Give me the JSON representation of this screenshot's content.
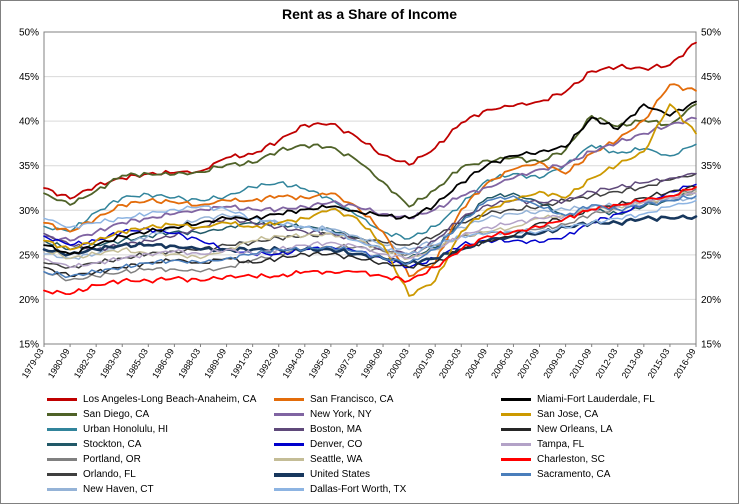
{
  "chart_data": {
    "type": "line",
    "title": "Rent as a Share of Income",
    "ylabel": "",
    "xlabel": "",
    "ylim": [
      15,
      50
    ],
    "y_ticks": [
      15,
      20,
      25,
      30,
      35,
      40,
      45,
      50
    ],
    "y_tick_suffix": "%",
    "grid": true,
    "legend_position": "bottom",
    "x_labels": [
      "1979-03",
      "1980-09",
      "1982-03",
      "1983-09",
      "1985-03",
      "1986-09",
      "1988-03",
      "1989-09",
      "1991-03",
      "1992-09",
      "1994-03",
      "1995-09",
      "1997-03",
      "1998-09",
      "2000-03",
      "2001-09",
      "2003-03",
      "2004-09",
      "2006-03",
      "2007-09",
      "2009-03",
      "2010-09",
      "2012-03",
      "2013-09",
      "2015-03",
      "2016-09"
    ],
    "series": [
      {
        "name": "Los Angeles-Long Beach-Anaheim, CA",
        "color": "#C00000",
        "width": 1.8,
        "values": [
          32.5,
          31.3,
          32.8,
          33.6,
          34.1,
          34.2,
          34.4,
          35.9,
          36.3,
          37.8,
          39.6,
          39.7,
          38.2,
          36.2,
          35.1,
          37.0,
          39.8,
          41.3,
          41.7,
          42.2,
          43.3,
          45.6,
          46.1,
          45.9,
          46.3,
          48.8
        ]
      },
      {
        "name": "San Diego, CA",
        "color": "#4F6228",
        "width": 1.8,
        "values": [
          31.9,
          30.6,
          32.2,
          33.9,
          34.1,
          34.0,
          34.3,
          35.1,
          35.3,
          36.7,
          37.3,
          37.1,
          35.6,
          33.2,
          30.4,
          32.3,
          34.8,
          35.6,
          35.9,
          35.4,
          36.8,
          40.6,
          39.4,
          40.1,
          39.6,
          41.9
        ]
      },
      {
        "name": "Urban Honolulu, HI",
        "color": "#31849B",
        "width": 1.5,
        "values": [
          28.2,
          27.6,
          29.8,
          31.4,
          31.8,
          31.4,
          31.1,
          31.6,
          32.6,
          33.1,
          32.4,
          31.3,
          29.4,
          27.6,
          26.8,
          28.2,
          30.6,
          33.4,
          34.1,
          33.6,
          35.1,
          37.3,
          36.4,
          36.9,
          36.1,
          37.4
        ]
      },
      {
        "name": "Stockton, CA",
        "color": "#215968",
        "width": 1.5,
        "values": [
          26.6,
          25.6,
          26.1,
          26.6,
          27.1,
          27.6,
          27.4,
          28.1,
          28.6,
          28.4,
          28.1,
          27.9,
          26.9,
          25.6,
          24.7,
          25.8,
          28.7,
          31.4,
          31.9,
          30.8,
          29.4,
          30.1,
          29.6,
          30.4,
          31.1,
          32.1
        ]
      },
      {
        "name": "Portland, OR",
        "color": "#808080",
        "width": 1.5,
        "values": [
          23.1,
          22.2,
          22.6,
          23.1,
          23.4,
          23.4,
          23.1,
          23.6,
          24.4,
          25.1,
          25.6,
          25.9,
          25.9,
          25.4,
          25.1,
          26.1,
          27.1,
          27.4,
          27.6,
          27.9,
          28.4,
          29.6,
          30.1,
          30.6,
          31.6,
          32.4
        ]
      },
      {
        "name": "Orlando, FL",
        "color": "#3F3F3F",
        "width": 1.5,
        "values": [
          24.1,
          23.6,
          24.1,
          24.6,
          25.1,
          25.4,
          25.6,
          26.1,
          26.4,
          26.9,
          27.1,
          27.4,
          26.9,
          26.4,
          26.1,
          27.1,
          28.6,
          29.6,
          30.1,
          30.4,
          31.1,
          31.6,
          32.1,
          32.6,
          33.4,
          34.1
        ]
      },
      {
        "name": "New Haven, CT",
        "color": "#95B3D7",
        "width": 1.5,
        "values": [
          25.1,
          24.6,
          25.1,
          26.1,
          27.1,
          28.1,
          29.1,
          29.4,
          29.1,
          28.6,
          28.1,
          27.9,
          27.1,
          26.1,
          25.6,
          26.6,
          28.1,
          29.1,
          29.6,
          29.9,
          30.1,
          30.4,
          30.6,
          30.9,
          31.1,
          31.4
        ]
      },
      {
        "name": "San Francisco, CA",
        "color": "#E36C0A",
        "width": 1.8,
        "values": [
          28.6,
          27.6,
          29.1,
          30.6,
          31.1,
          30.9,
          30.6,
          31.1,
          31.1,
          31.6,
          31.4,
          31.9,
          30.4,
          27.6,
          22.6,
          24.1,
          30.1,
          33.1,
          34.6,
          35.4,
          34.1,
          36.4,
          37.9,
          40.1,
          44.1,
          43.4
        ]
      },
      {
        "name": "New York, NY",
        "color": "#8064A2",
        "width": 1.8,
        "values": [
          27.1,
          26.6,
          27.6,
          28.6,
          29.1,
          29.6,
          30.1,
          30.4,
          30.1,
          30.1,
          30.4,
          30.9,
          30.4,
          29.6,
          29.1,
          30.1,
          31.6,
          32.6,
          33.6,
          34.6,
          35.1,
          36.6,
          37.6,
          38.6,
          39.6,
          40.3
        ]
      },
      {
        "name": "Boston, MA",
        "color": "#5F497A",
        "width": 1.5,
        "values": [
          27.4,
          26.1,
          25.6,
          26.1,
          26.6,
          27.1,
          28.1,
          29.1,
          28.6,
          28.1,
          27.6,
          27.4,
          26.6,
          25.6,
          25.1,
          26.6,
          29.1,
          30.6,
          31.1,
          30.9,
          31.1,
          32.1,
          32.6,
          33.1,
          33.6,
          34.1
        ]
      },
      {
        "name": "Denver, CO",
        "color": "#0000CC",
        "width": 1.5,
        "values": [
          27.1,
          26.1,
          26.6,
          27.6,
          27.9,
          27.4,
          26.6,
          25.6,
          25.1,
          25.1,
          25.6,
          25.9,
          25.4,
          24.6,
          23.6,
          24.6,
          26.1,
          26.6,
          26.6,
          26.4,
          27.1,
          28.6,
          29.6,
          30.6,
          32.1,
          32.9
        ]
      },
      {
        "name": "Seattle, WA",
        "color": "#C4BD97",
        "width": 1.5,
        "values": [
          25.6,
          24.6,
          25.1,
          25.6,
          25.1,
          25.1,
          24.6,
          25.6,
          26.6,
          27.1,
          27.1,
          27.4,
          26.6,
          25.6,
          24.6,
          25.6,
          27.1,
          27.6,
          28.1,
          29.1,
          29.4,
          30.1,
          30.4,
          30.9,
          31.4,
          32.1
        ]
      },
      {
        "name": "United States",
        "color": "#17375D",
        "width": 2.6,
        "values": [
          25.6,
          25.1,
          25.6,
          26.1,
          26.1,
          26.0,
          25.6,
          25.6,
          25.6,
          25.6,
          25.6,
          25.6,
          25.1,
          24.6,
          24.1,
          24.6,
          25.6,
          26.6,
          27.1,
          27.4,
          28.1,
          28.6,
          28.6,
          29.1,
          29.1,
          29.3
        ]
      },
      {
        "name": "Dallas-Fort Worth, TX",
        "color": "#8DB4E2",
        "width": 1.5,
        "values": [
          29.1,
          28.1,
          28.6,
          29.1,
          29.6,
          30.1,
          30.4,
          30.1,
          29.1,
          28.6,
          28.1,
          27.6,
          26.6,
          25.6,
          25.1,
          26.1,
          27.1,
          27.4,
          27.6,
          27.6,
          28.1,
          28.6,
          29.1,
          29.6,
          30.4,
          31.1
        ]
      },
      {
        "name": "Miami-Fort Lauderdale, FL",
        "color": "#000000",
        "width": 1.8,
        "values": [
          26.1,
          25.1,
          26.1,
          27.1,
          27.6,
          28.1,
          28.6,
          29.1,
          29.1,
          29.6,
          30.1,
          30.4,
          29.9,
          29.4,
          29.1,
          30.6,
          33.1,
          35.1,
          36.1,
          36.6,
          37.1,
          40.4,
          39.1,
          41.9,
          40.6,
          42.2
        ]
      },
      {
        "name": "San Jose, CA",
        "color": "#CC9900",
        "width": 1.8,
        "values": [
          26.6,
          25.6,
          26.6,
          27.6,
          28.1,
          28.4,
          28.1,
          28.6,
          28.1,
          28.6,
          29.1,
          30.1,
          29.1,
          26.1,
          20.4,
          22.1,
          27.6,
          30.1,
          31.1,
          32.1,
          31.4,
          33.6,
          35.1,
          36.6,
          41.9,
          38.6
        ]
      },
      {
        "name": "New Orleans, LA",
        "color": "#262626",
        "width": 1.5,
        "values": [
          23.6,
          22.6,
          23.1,
          23.6,
          24.1,
          24.4,
          24.1,
          24.6,
          24.1,
          24.6,
          25.1,
          25.1,
          24.6,
          24.1,
          23.6,
          24.1,
          25.6,
          26.6,
          27.1,
          28.6,
          29.1,
          30.1,
          30.6,
          31.4,
          32.1,
          32.6
        ]
      },
      {
        "name": "Tampa, FL",
        "color": "#B3A2C7",
        "width": 1.5,
        "values": [
          24.6,
          23.6,
          24.1,
          24.6,
          25.1,
          25.4,
          25.1,
          25.6,
          25.1,
          25.6,
          26.1,
          26.4,
          25.9,
          25.1,
          24.6,
          25.6,
          27.1,
          28.1,
          28.6,
          29.1,
          29.4,
          30.1,
          30.4,
          30.9,
          31.4,
          31.9
        ]
      },
      {
        "name": "Charleston, SC",
        "color": "#FF0000",
        "width": 1.8,
        "values": [
          21.0,
          20.6,
          21.6,
          22.1,
          22.1,
          22.4,
          22.1,
          22.6,
          22.6,
          22.6,
          23.1,
          23.1,
          23.1,
          22.6,
          22.1,
          23.6,
          25.6,
          27.1,
          27.6,
          28.1,
          29.1,
          30.1,
          30.6,
          31.1,
          31.6,
          32.6
        ]
      },
      {
        "name": "Sacramento, CA",
        "color": "#4A7EBB",
        "width": 1.5,
        "values": [
          23.1,
          22.6,
          23.1,
          23.6,
          24.1,
          24.4,
          24.1,
          24.6,
          25.1,
          25.6,
          25.6,
          25.9,
          25.4,
          24.6,
          24.1,
          25.6,
          28.6,
          31.1,
          31.6,
          30.4,
          29.4,
          30.6,
          30.1,
          30.6,
          31.1,
          31.6
        ]
      }
    ]
  }
}
